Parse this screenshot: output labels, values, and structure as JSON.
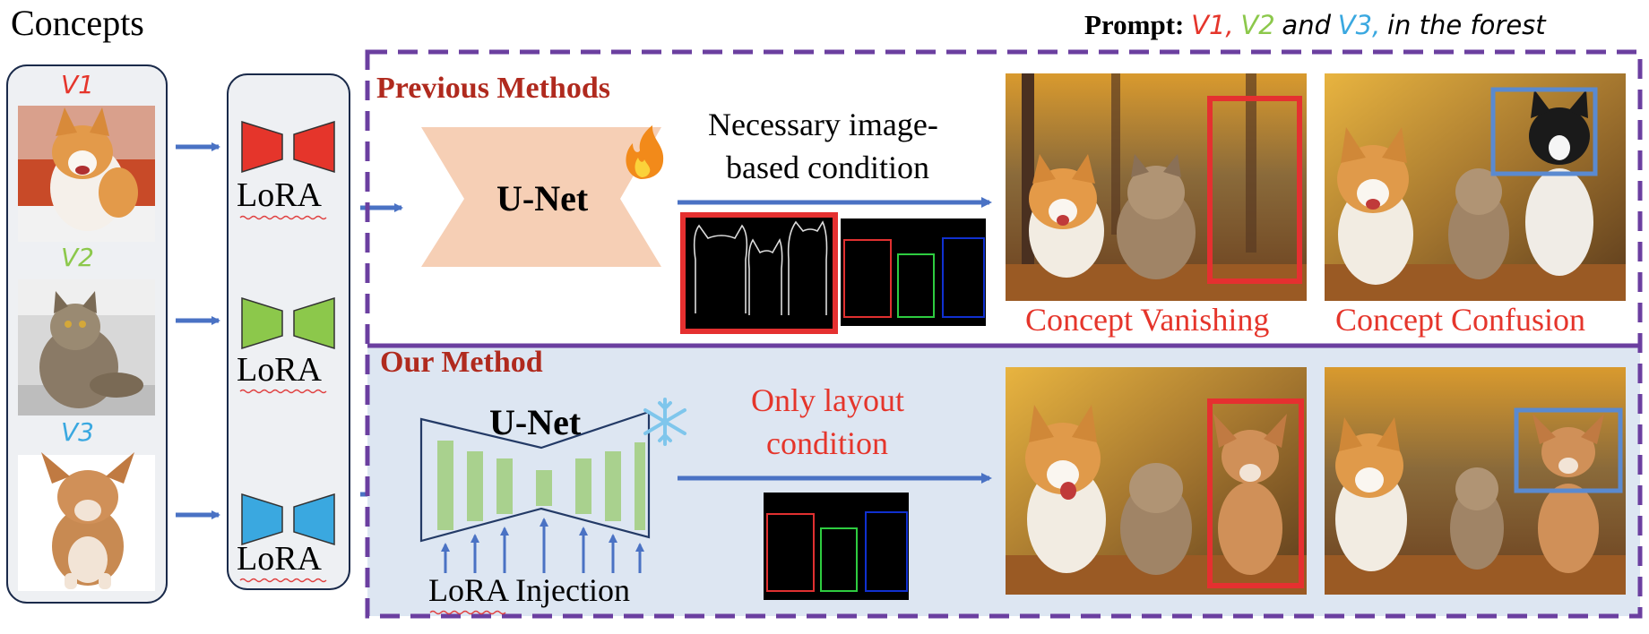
{
  "concepts": {
    "heading": "Concepts",
    "items": [
      {
        "label": "V1",
        "color": "#e5352b"
      },
      {
        "label": "V2",
        "color": "#8cc84b"
      },
      {
        "label": "V3",
        "color": "#3aa8e0"
      }
    ]
  },
  "lora": {
    "label": "LoRA",
    "colors": [
      "#e5352b",
      "#8cc84b",
      "#3aa8e0"
    ]
  },
  "prompt": {
    "prefix": "Prompt:",
    "v1": "V1,",
    "v2": "V2",
    "and": "and",
    "v3": "V3,",
    "rest": "in the forest"
  },
  "previous": {
    "title": "Previous Methods",
    "unet": "U-Net",
    "condition_line1": "Necessary image-",
    "condition_line2": "based condition",
    "fire_icon": "fire-icon",
    "result_left": "Concept Vanishing",
    "result_right": "Concept Confusion"
  },
  "ours": {
    "title": "Our Method",
    "unet": "U-Net",
    "snow_icon": "snowflake-icon",
    "condition_line1": "Only layout",
    "condition_line2": "condition",
    "injection": "LoRA Injection"
  },
  "colors": {
    "accent_red": "#e5352b",
    "title_red": "#b02a1e",
    "arrow_blue": "#4a72c4",
    "dashed_purple": "#6b3fa0",
    "unet_peach": "#f6cfb5",
    "unet_green": "#a9d18e",
    "our_bg": "#dde6f2",
    "box_green": "#2ecc40",
    "box_blue": "#1030d0",
    "box_red": "#e03030"
  }
}
